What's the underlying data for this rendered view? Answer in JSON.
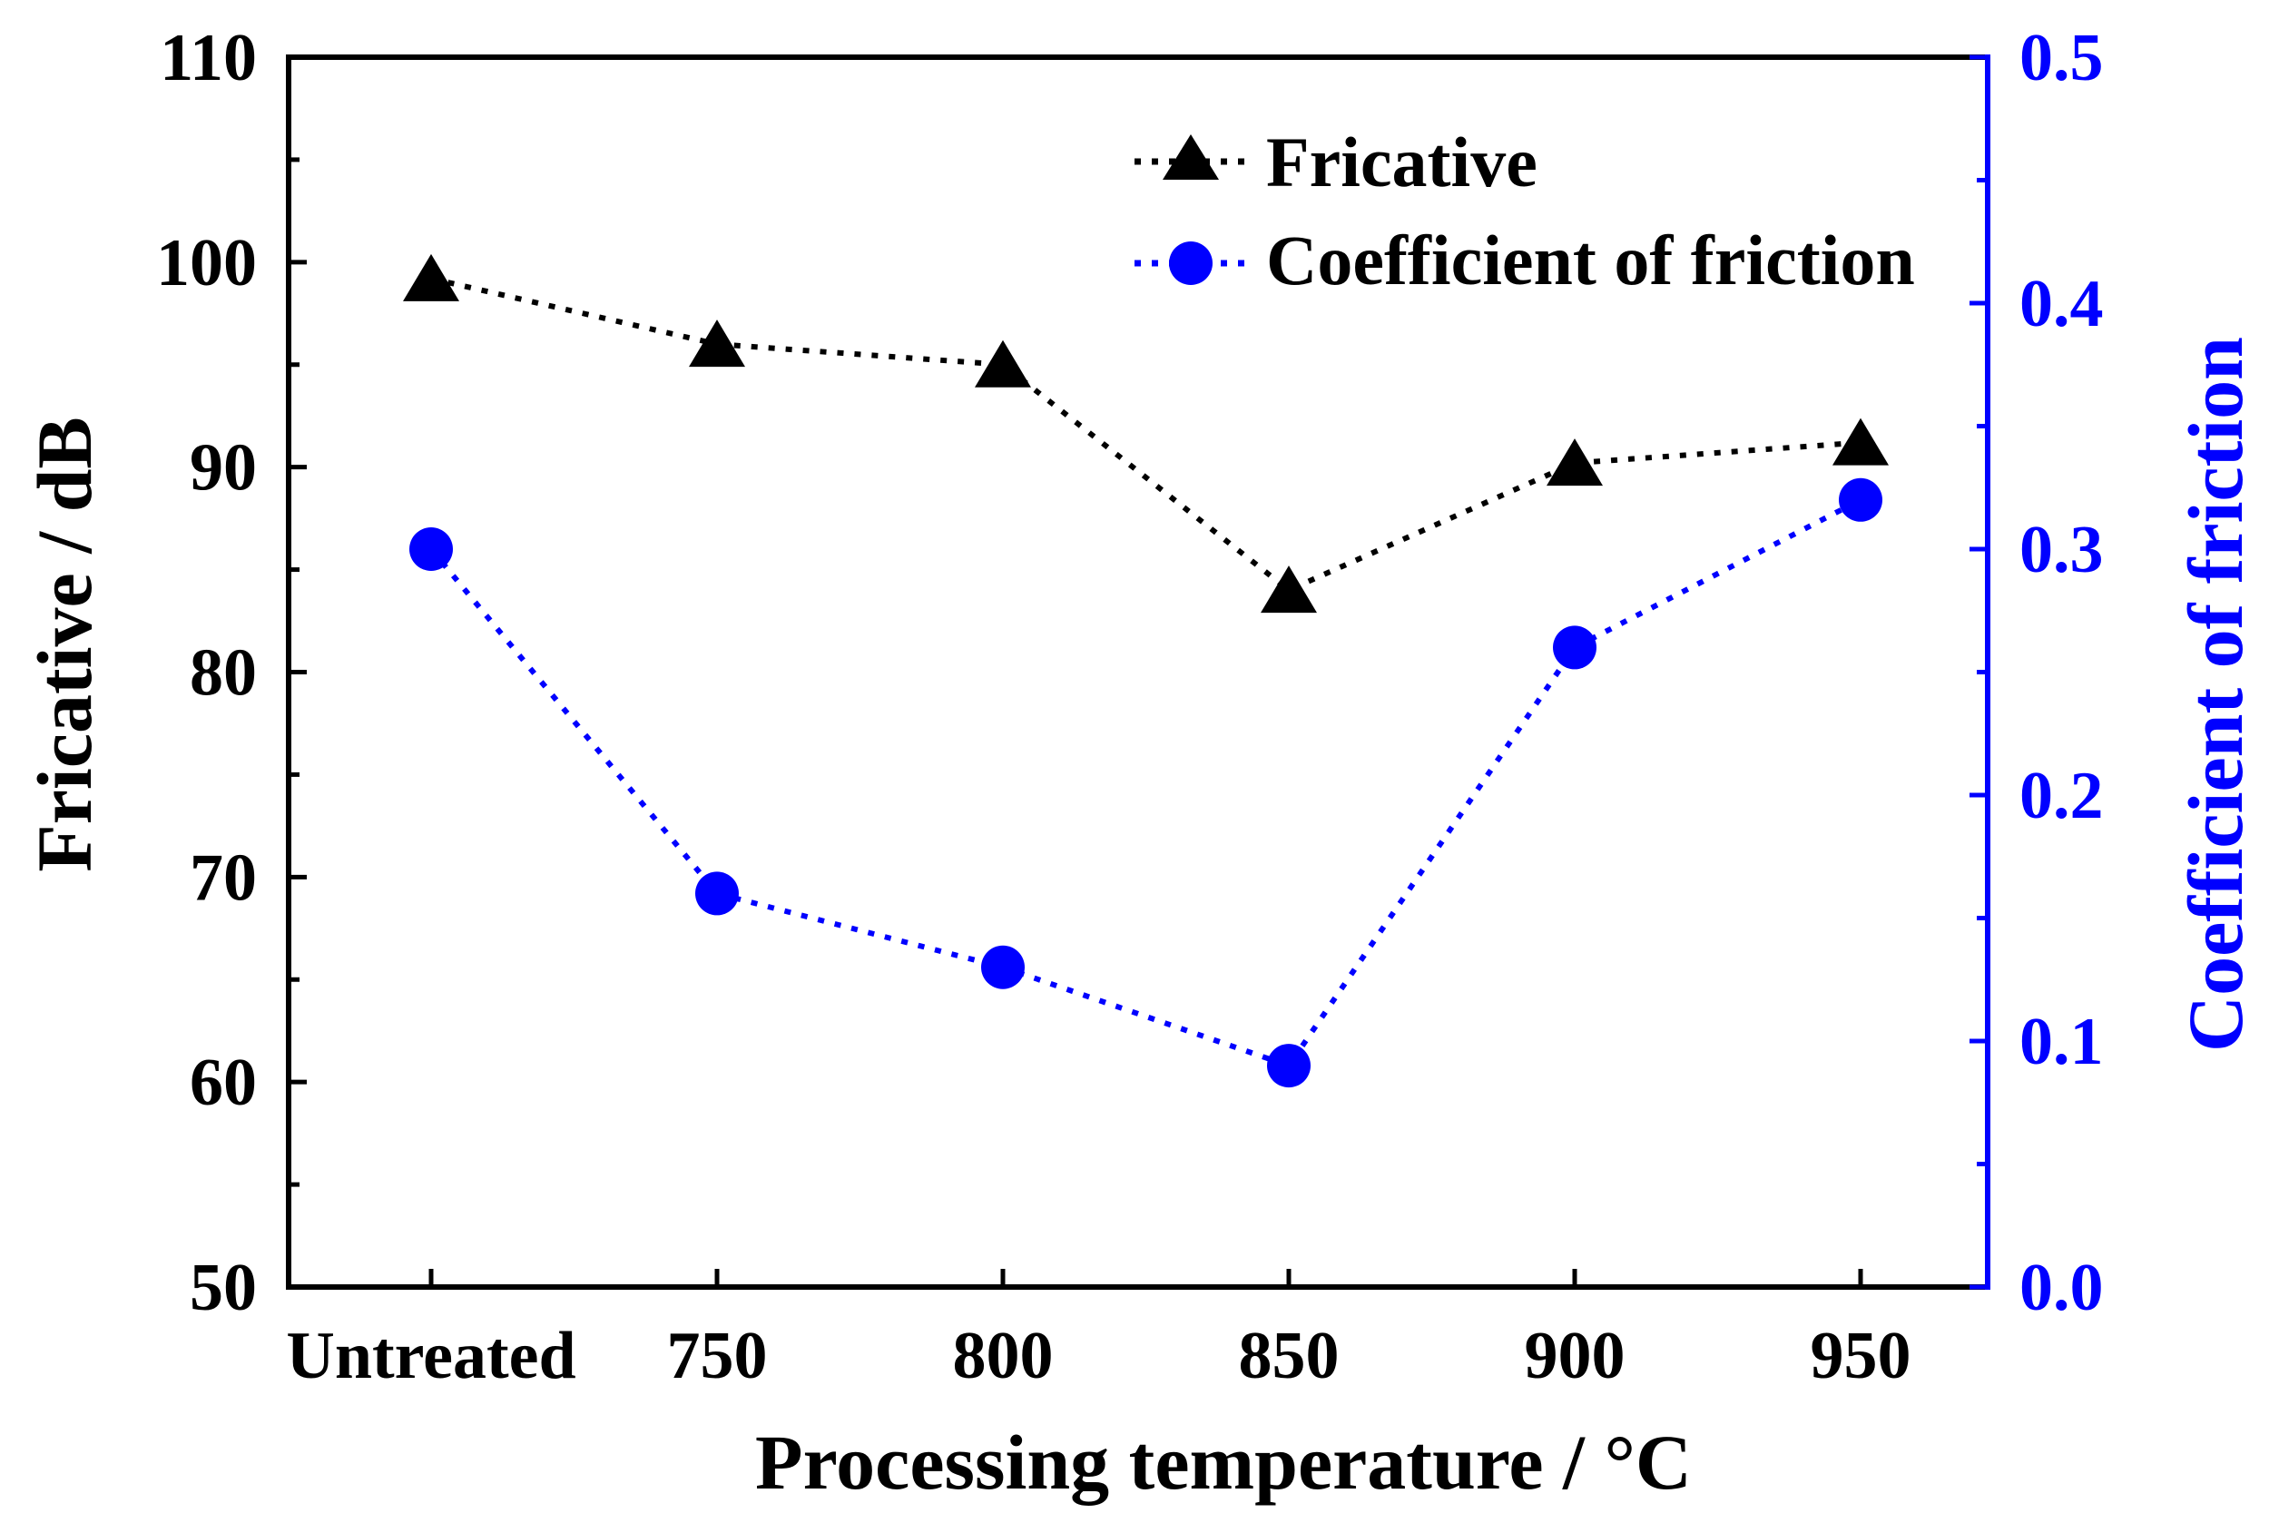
{
  "chart_data": {
    "type": "line",
    "categories": [
      "Untreated",
      "750",
      "800",
      "850",
      "900",
      "950"
    ],
    "xlabel": "Processing temperature / °C",
    "y_left": {
      "label": "Fricative / dB",
      "ylim": [
        50,
        110
      ],
      "ticks": [
        "50",
        "60",
        "70",
        "80",
        "90",
        "100",
        "110"
      ],
      "tick_values": [
        50,
        60,
        70,
        80,
        90,
        100,
        110
      ]
    },
    "y_right": {
      "label": "Coefficient of friction",
      "ylim": [
        0.0,
        0.5
      ],
      "ticks": [
        "0.0",
        "0.1",
        "0.2",
        "0.3",
        "0.4",
        "0.5"
      ],
      "tick_values": [
        0.0,
        0.1,
        0.2,
        0.3,
        0.4,
        0.5
      ]
    },
    "series": [
      {
        "name": "Fricative",
        "axis": "left",
        "marker": "triangle",
        "line_style": "dotted",
        "color": "#000000",
        "values": [
          99.2,
          96.0,
          95.0,
          84.0,
          90.2,
          91.2
        ]
      },
      {
        "name": "Coefficient of friction",
        "axis": "right",
        "marker": "circle",
        "line_style": "dotted",
        "color": "#0000ff",
        "values": [
          0.3,
          0.16,
          0.13,
          0.09,
          0.26,
          0.32
        ]
      }
    ],
    "legend_position": "top-right"
  }
}
